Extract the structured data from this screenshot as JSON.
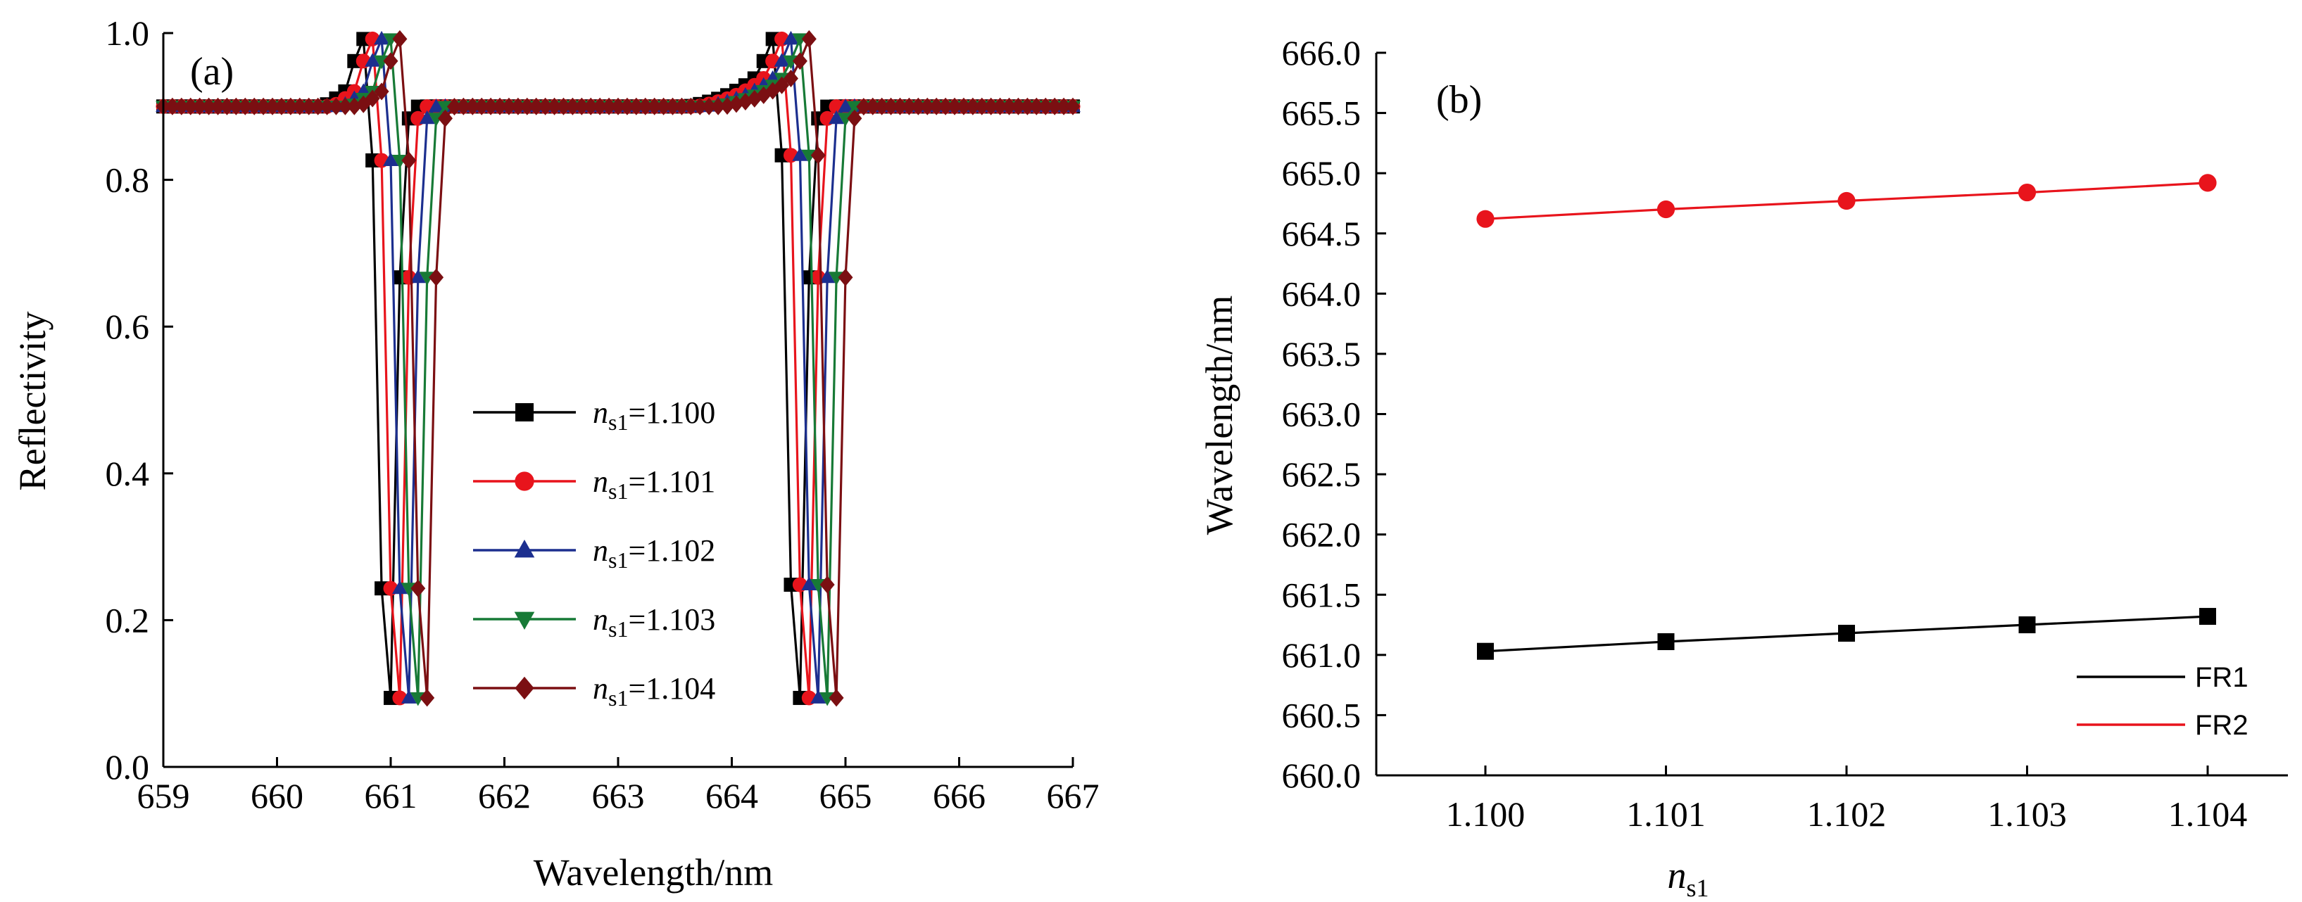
{
  "chart_data": [
    {
      "type": "line",
      "panel_label": "(a)",
      "xlabel": "Wavelength/nm",
      "ylabel": "Reflectivity",
      "xlim": [
        659,
        667
      ],
      "ylim": [
        0.0,
        1.0
      ],
      "xticks": [
        "659",
        "660",
        "661",
        "662",
        "663",
        "664",
        "665",
        "666",
        "667"
      ],
      "yticks": [
        "0.0",
        "0.2",
        "0.4",
        "0.6",
        "0.8",
        "1.0"
      ],
      "legend_placement": "center",
      "series": [
        {
          "name_prefix": "n",
          "name_sub": "s1",
          "name_suffix": "=1.100",
          "color": "#000000",
          "marker": "square",
          "res1": 660.97,
          "res2": 664.57
        },
        {
          "name_prefix": "n",
          "name_sub": "s1",
          "name_suffix": "=1.101",
          "color": "#e8141c",
          "marker": "circle",
          "res1": 661.05,
          "res2": 664.65
        },
        {
          "name_prefix": "n",
          "name_sub": "s1",
          "name_suffix": "=1.102",
          "color": "#1c2f8f",
          "marker": "triangle-up",
          "res1": 661.13,
          "res2": 664.73
        },
        {
          "name_prefix": "n",
          "name_sub": "s1",
          "name_suffix": "=1.103",
          "color": "#177a36",
          "marker": "triangle-down",
          "res1": 661.21,
          "res2": 664.81
        },
        {
          "name_prefix": "n",
          "name_sub": "s1",
          "name_suffix": "=1.104",
          "color": "#7b0f12",
          "marker": "diamond",
          "res1": 661.29,
          "res2": 664.89
        }
      ]
    },
    {
      "type": "line",
      "panel_label": "(b)",
      "xlabel_prefix": "n",
      "xlabel_sub": "s1",
      "ylabel": "Wavelength/nm",
      "ylim": [
        660.0,
        666.0
      ],
      "categories": [
        "1.100",
        "1.101",
        "1.102",
        "1.103",
        "1.104"
      ],
      "yticks": [
        "660.0",
        "660.5",
        "661.0",
        "661.5",
        "662.0",
        "662.5",
        "663.0",
        "663.5",
        "664.0",
        "664.5",
        "665.0",
        "665.5",
        "666.0"
      ],
      "legend_placement": "bottom-right",
      "series": [
        {
          "name": "FR1",
          "color": "#000000",
          "marker": "square",
          "values": [
            661.03,
            661.11,
            661.18,
            661.25,
            661.32
          ]
        },
        {
          "name": "FR2",
          "color": "#e8141c",
          "marker": "circle",
          "values": [
            664.62,
            664.7,
            664.77,
            664.84,
            664.92
          ]
        }
      ]
    }
  ]
}
